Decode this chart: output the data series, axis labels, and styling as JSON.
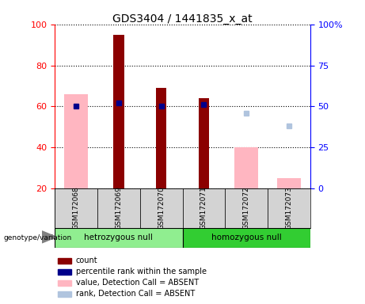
{
  "title": "GDS3404 / 1441835_x_at",
  "samples": [
    "GSM172068",
    "GSM172069",
    "GSM172070",
    "GSM172071",
    "GSM172072",
    "GSM172073"
  ],
  "ylim_left": [
    20,
    100
  ],
  "ylim_right": [
    0,
    100
  ],
  "yticks_left": [
    20,
    40,
    60,
    80,
    100
  ],
  "yticks_right": [
    0,
    25,
    50,
    75,
    100
  ],
  "count_values": [
    null,
    95,
    69,
    64,
    null,
    null
  ],
  "percentile_values_right": [
    50,
    52,
    50,
    51,
    null,
    null
  ],
  "value_absent_values_left": [
    66,
    null,
    null,
    null,
    40,
    25
  ],
  "rank_absent_values_right": [
    null,
    null,
    null,
    null,
    46,
    38
  ],
  "count_color": "#8B0000",
  "percentile_color": "#00008B",
  "value_absent_color": "#FFB6C1",
  "rank_absent_color": "#B0C4DE",
  "group1_color": "#90EE90",
  "group2_color": "#32CD32",
  "sample_area_color": "#D3D3D3"
}
